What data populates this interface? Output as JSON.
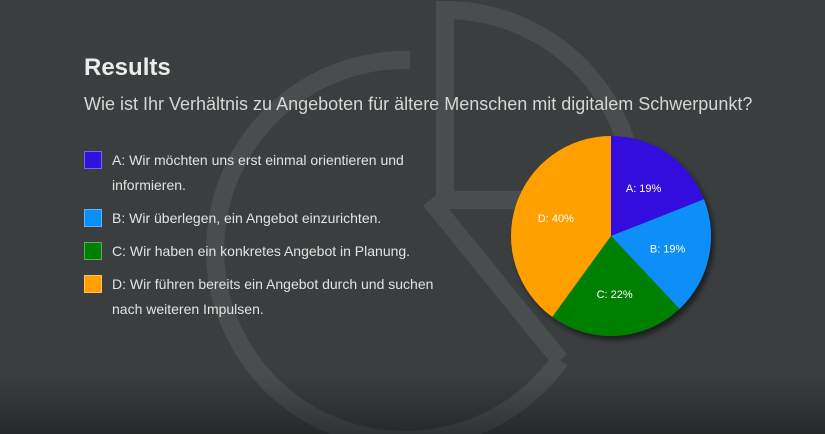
{
  "header": {
    "title": "Results",
    "question": "Wie ist Ihr Verhältnis zu Angeboten für ältere Menschen mit digitalem Schwerpunkt?"
  },
  "chart_data": {
    "type": "pie",
    "categories": [
      "A",
      "B",
      "C",
      "D"
    ],
    "values": [
      19,
      19,
      22,
      40
    ],
    "slice_labels": [
      "A: 19%",
      "B: 19%",
      "C: 22%",
      "D: 40%"
    ],
    "legend": [
      "A: Wir möchten uns erst einmal orientieren und informieren.",
      "B: Wir überlegen, ein Angebot einzurichten.",
      "C: Wir haben ein konkretes Angebot in Planung.",
      "D: Wir führen bereits ein Angebot durch und suchen nach weiteren Impulsen."
    ],
    "colors": [
      "#3311dd",
      "#0a8ef8",
      "#008000",
      "#ffa000"
    ],
    "legend_position": "left"
  },
  "background": {
    "color": "#3b3e3f",
    "icon": "pie-chart-icon"
  }
}
